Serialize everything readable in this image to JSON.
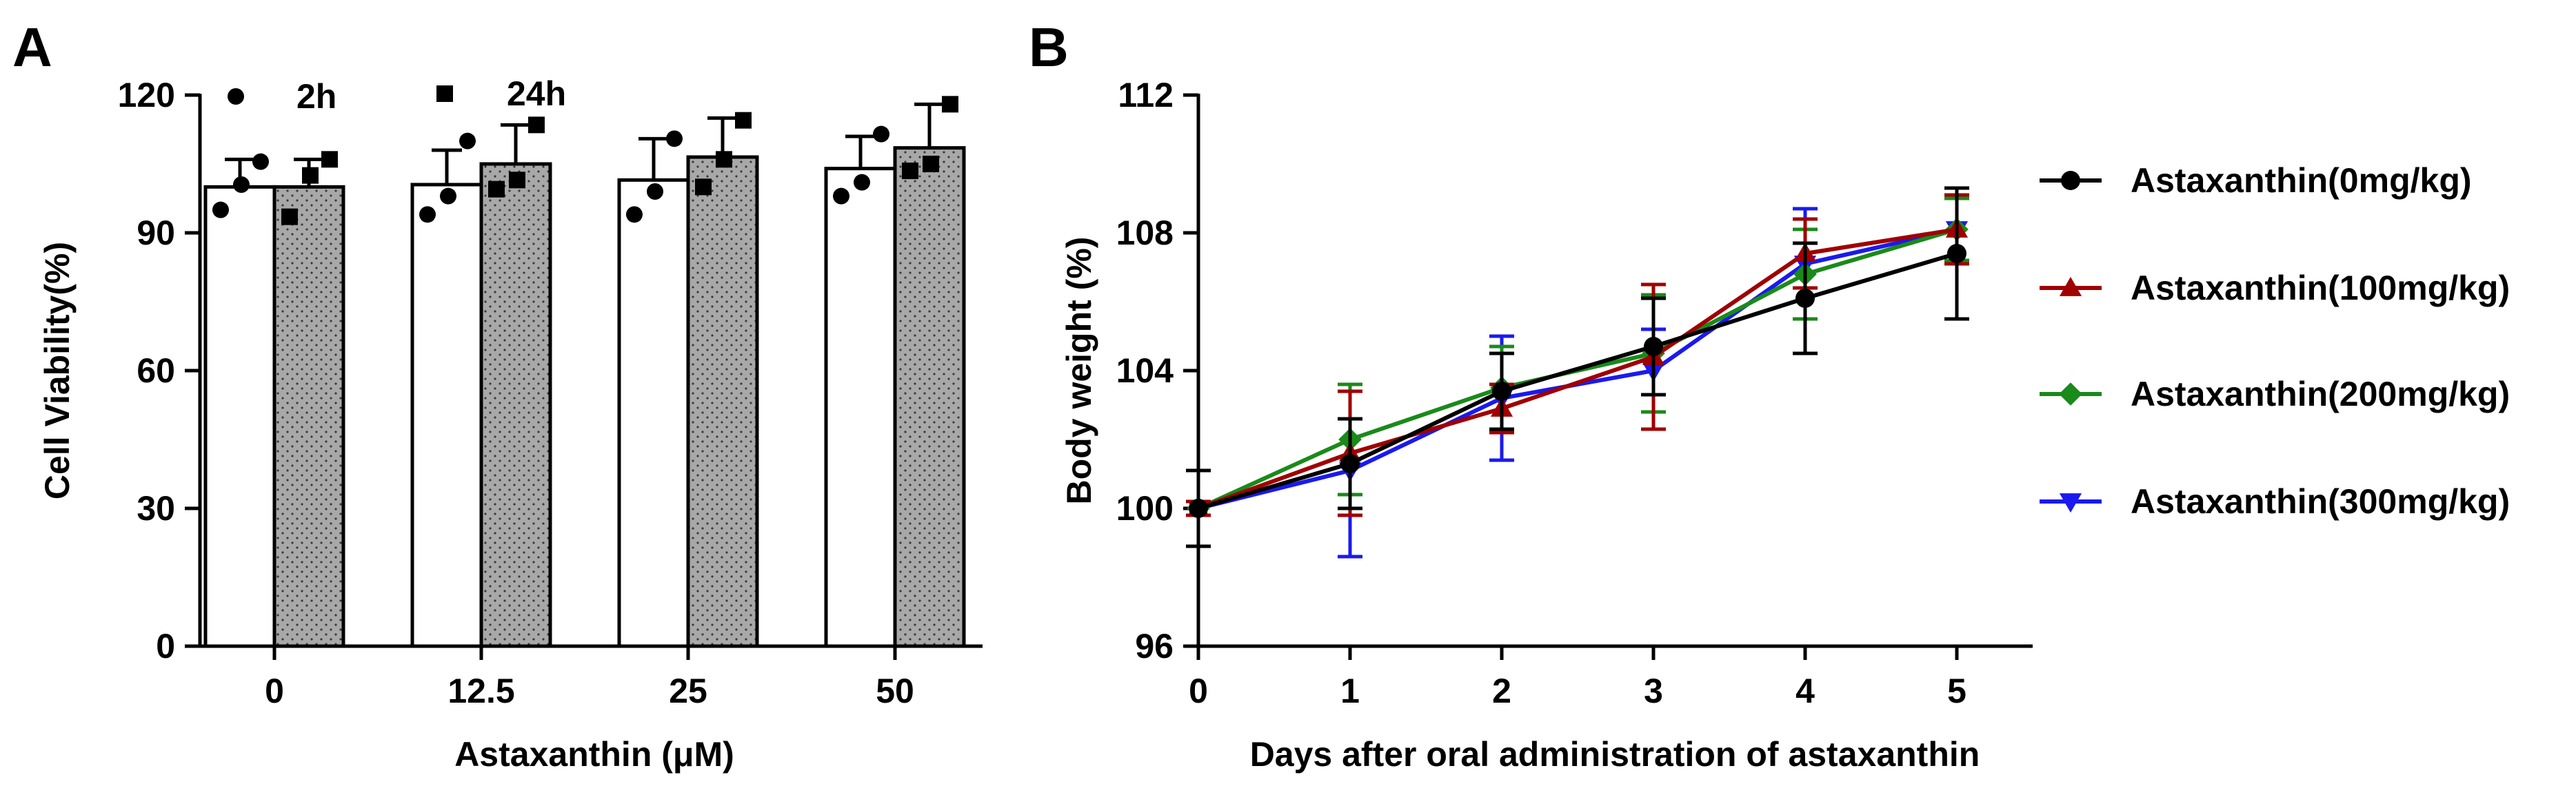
{
  "panel_labels": [
    "A",
    "B"
  ],
  "chart_data": [
    {
      "panel": "A",
      "type": "bar",
      "xlabel": "Astaxanthin (μM)",
      "ylabel": "Cell Viability(%)",
      "ylim": [
        0,
        120
      ],
      "yticks": [
        0,
        30,
        60,
        90,
        120
      ],
      "categories": [
        "0",
        "12.5",
        "25",
        "50"
      ],
      "legend_position": "top",
      "series": [
        {
          "name": "2h",
          "marker": "circle",
          "fill": "#ffffff",
          "values": [
            100,
            100.5,
            101.5,
            104
          ],
          "errors": [
            6,
            7.5,
            9,
            7
          ],
          "points": [
            [
              95,
              100.5,
              105.5
            ],
            [
              94,
              98,
              110
            ],
            [
              94,
              99,
              110.5
            ],
            [
              98,
              101,
              111.5
            ]
          ]
        },
        {
          "name": "24h",
          "marker": "square",
          "fill": "#a6a6a6",
          "values": [
            100,
            105,
            106.5,
            108.5
          ],
          "errors": [
            6,
            8.5,
            8.5,
            9.5
          ],
          "points": [
            [
              93.5,
              102.5,
              106
            ],
            [
              99.5,
              101.5,
              113.5
            ],
            [
              100,
              106,
              114.5
            ],
            [
              103.5,
              105,
              118
            ]
          ]
        }
      ]
    },
    {
      "panel": "B",
      "type": "line",
      "xlabel": "Days after oral administration of astaxanthin",
      "ylabel": "Body weight (%)",
      "x": [
        0,
        1,
        2,
        3,
        4,
        5
      ],
      "xlim": [
        0,
        5.5
      ],
      "ylim": [
        96,
        112
      ],
      "yticks": [
        96,
        100,
        104,
        108,
        112
      ],
      "legend_position": "right",
      "series": [
        {
          "name": "Astaxanthin(0mg/kg)",
          "color": "#000000",
          "marker": "circle",
          "values": [
            100,
            101.3,
            103.4,
            104.7,
            106.1,
            107.4
          ],
          "errors": [
            1.1,
            1.3,
            1.1,
            1.4,
            1.6,
            1.9
          ]
        },
        {
          "name": "Astaxanthin(100mg/kg)",
          "color": "#a00000",
          "marker": "triangle-up",
          "values": [
            100,
            101.6,
            102.9,
            104.4,
            107.4,
            108.1
          ],
          "errors": [
            0.2,
            1.8,
            0.7,
            2.1,
            1.0,
            1.0
          ]
        },
        {
          "name": "Astaxanthin(200mg/kg)",
          "color": "#1a8a1a",
          "marker": "diamond",
          "values": [
            100,
            102.0,
            103.5,
            104.5,
            106.8,
            108.1
          ],
          "errors": [
            0.2,
            1.6,
            1.2,
            1.7,
            1.3,
            0.9
          ]
        },
        {
          "name": "Astaxanthin(300mg/kg)",
          "color": "#1a1aee",
          "marker": "triangle-down",
          "values": [
            100,
            101.1,
            103.2,
            104.0,
            107.1,
            108.1
          ],
          "errors": [
            0.2,
            2.5,
            1.8,
            1.2,
            1.6,
            1.0
          ]
        }
      ]
    }
  ]
}
